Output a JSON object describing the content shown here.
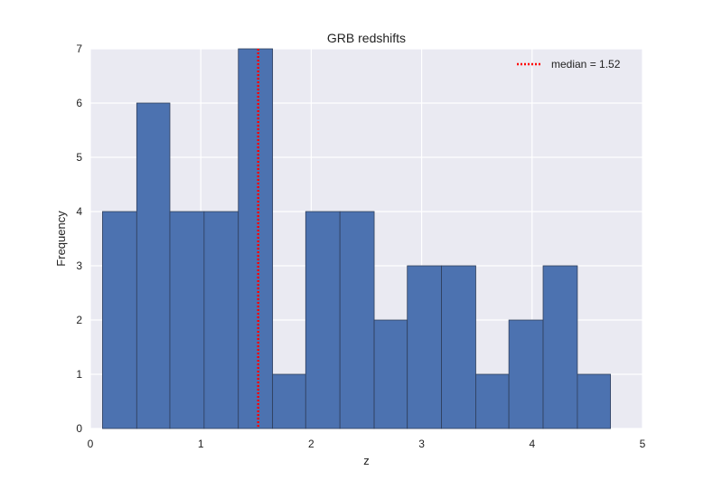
{
  "chart_data": {
    "type": "bar",
    "title": "GRB redshifts",
    "xlabel": "z",
    "ylabel": "Frequency",
    "xlim": [
      0,
      5
    ],
    "ylim": [
      0,
      7
    ],
    "xticks": [
      "0",
      "1",
      "2",
      "3",
      "4",
      "5"
    ],
    "yticks": [
      "0",
      "1",
      "2",
      "3",
      "4",
      "5",
      "6",
      "7"
    ],
    "grid": true,
    "legend_position": "top-right",
    "median": {
      "value": 1.52,
      "label": "median = 1.52",
      "color": "#ff0000"
    },
    "bar_color": "#4c72b0",
    "background_color": "#eaeaf2",
    "bins": [
      {
        "x0": 0.11,
        "x1": 0.42,
        "count": 4
      },
      {
        "x0": 0.42,
        "x1": 0.72,
        "count": 6
      },
      {
        "x0": 0.72,
        "x1": 1.03,
        "count": 4
      },
      {
        "x0": 1.03,
        "x1": 1.34,
        "count": 4
      },
      {
        "x0": 1.34,
        "x1": 1.65,
        "count": 7
      },
      {
        "x0": 1.65,
        "x1": 1.95,
        "count": 1
      },
      {
        "x0": 1.95,
        "x1": 2.26,
        "count": 4
      },
      {
        "x0": 2.26,
        "x1": 2.57,
        "count": 4
      },
      {
        "x0": 2.57,
        "x1": 2.87,
        "count": 2
      },
      {
        "x0": 2.87,
        "x1": 3.18,
        "count": 3
      },
      {
        "x0": 3.18,
        "x1": 3.49,
        "count": 3
      },
      {
        "x0": 3.49,
        "x1": 3.79,
        "count": 1
      },
      {
        "x0": 3.79,
        "x1": 4.1,
        "count": 2
      },
      {
        "x0": 4.1,
        "x1": 4.41,
        "count": 3
      },
      {
        "x0": 4.41,
        "x1": 4.71,
        "count": 1
      }
    ]
  }
}
